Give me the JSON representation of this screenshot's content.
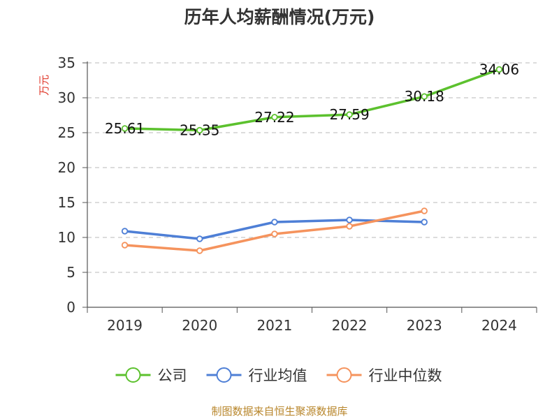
{
  "chart_data": {
    "type": "line",
    "title": "历年人均薪酬情况(万元)",
    "ylabel": "万元",
    "xlabel": "",
    "categories": [
      "2019",
      "2020",
      "2021",
      "2022",
      "2023",
      "2024"
    ],
    "ylim": [
      0,
      35
    ],
    "yticks": [
      "0",
      "5",
      "10",
      "15",
      "20",
      "25",
      "30",
      "35"
    ],
    "grid": true,
    "legend_position": "bottom",
    "series": [
      {
        "name": "公司",
        "color": "#5cc12e",
        "values": [
          25.61,
          25.35,
          27.22,
          27.59,
          30.18,
          34.06
        ],
        "labels": [
          "25.61",
          "25.35",
          "27.22",
          "27.59",
          "30.18",
          "34.06"
        ]
      },
      {
        "name": "行业均值",
        "color": "#4e7fd6",
        "values": [
          10.9,
          9.8,
          12.2,
          12.5,
          12.2,
          null
        ]
      },
      {
        "name": "行业中位数",
        "color": "#f5935d",
        "values": [
          8.9,
          8.1,
          10.5,
          11.6,
          13.8,
          null
        ]
      }
    ]
  },
  "footer": {
    "source": "制图数据来自恒生聚源数据库"
  }
}
